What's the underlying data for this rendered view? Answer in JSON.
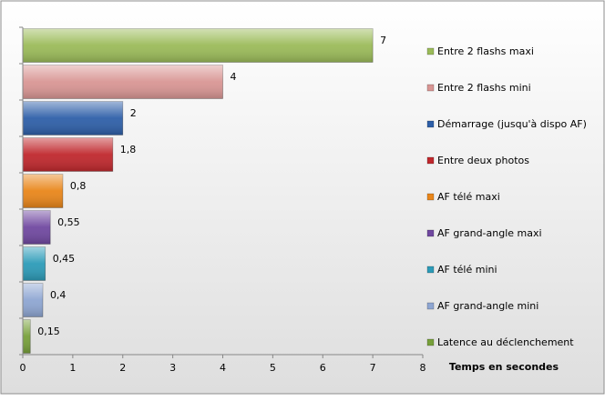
{
  "chart_data": {
    "type": "bar",
    "orientation": "horizontal",
    "xlabel": "Temps en secondes",
    "xlim": [
      0,
      8
    ],
    "xticks": [
      "0",
      "1",
      "2",
      "3",
      "4",
      "5",
      "6",
      "7",
      "8"
    ],
    "grid": false,
    "legend_position": "right",
    "categories": [
      "Entre 2 flashs maxi",
      "Entre 2 flashs mini",
      "Démarrage (jusqu'à dispo AF)",
      "Entre deux photos",
      "AF télé maxi",
      "AF grand-angle maxi",
      "AF télé mini",
      "AF grand-angle mini",
      "Latence au déclenchement"
    ],
    "values": [
      7,
      4,
      2,
      1.8,
      0.8,
      0.55,
      0.45,
      0.4,
      0.15
    ],
    "value_labels": [
      "7",
      "4",
      "2",
      "1,8",
      "0,8",
      "0,55",
      "0,45",
      "0,4",
      "0,15"
    ],
    "colors": [
      "#9BBB59",
      "#D99694",
      "#2E5FA8",
      "#C0282D",
      "#E9861A",
      "#7048A0",
      "#2C9BB8",
      "#8EA6D2",
      "#77A03A"
    ]
  }
}
